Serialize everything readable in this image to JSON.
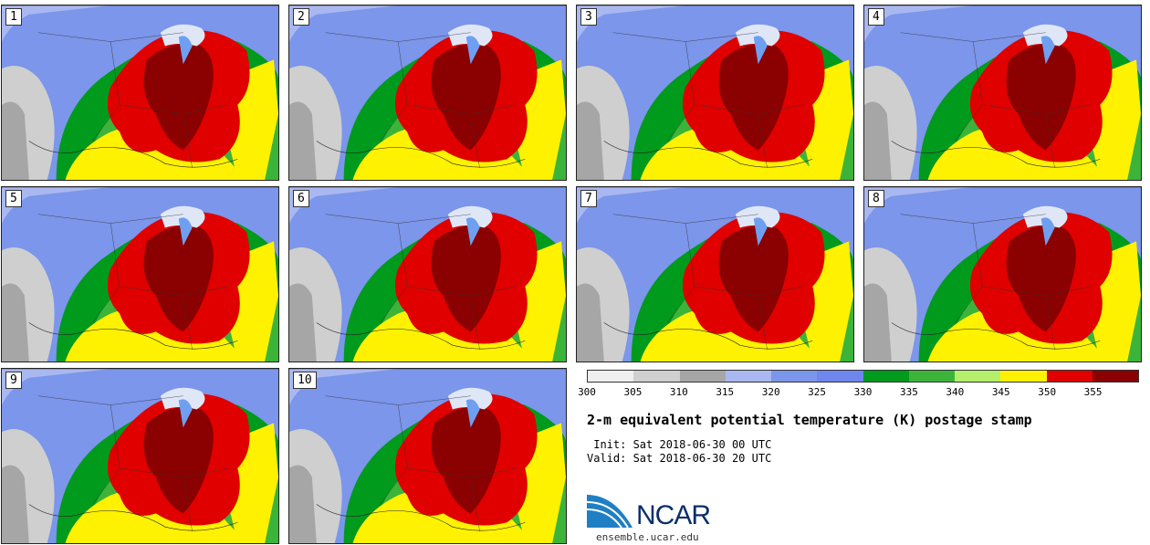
{
  "panels": [
    {
      "label": "1"
    },
    {
      "label": "2"
    },
    {
      "label": "3"
    },
    {
      "label": "4"
    },
    {
      "label": "5"
    },
    {
      "label": "6"
    },
    {
      "label": "7"
    },
    {
      "label": "8"
    },
    {
      "label": "9"
    },
    {
      "label": "10"
    }
  ],
  "colorbar": {
    "colors": [
      "#efefef",
      "#cfcfcf",
      "#a6a6a6",
      "#a9b8f0",
      "#7b96ea",
      "#6f86ec",
      "#009a1d",
      "#3cb43a",
      "#b5f06d",
      "#fff200",
      "#e00000",
      "#8b0000"
    ],
    "ticks": [
      "300",
      "305",
      "310",
      "315",
      "320",
      "325",
      "330",
      "335",
      "340",
      "345",
      "350",
      "355"
    ]
  },
  "title": "2-m equivalent potential temperature (K) postage stamp",
  "init": " Init: Sat 2018-06-30 00 UTC",
  "valid": "Valid: Sat 2018-06-30 20 UTC",
  "logo": {
    "text": "NCAR",
    "url": "ensemble.ucar.edu"
  }
}
